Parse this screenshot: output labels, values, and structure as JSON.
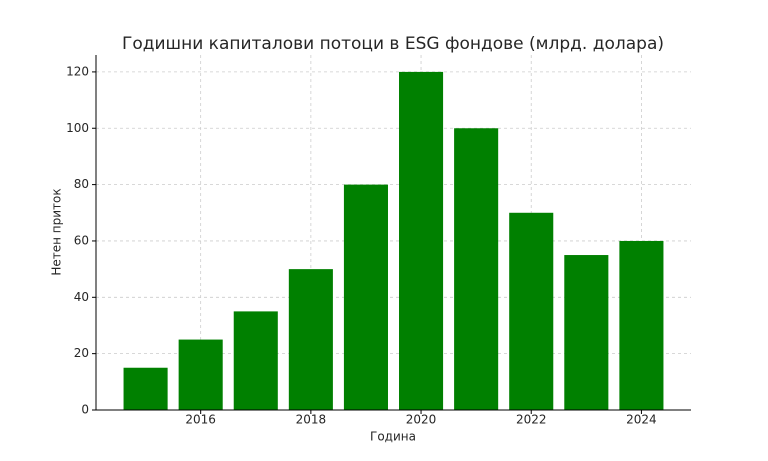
{
  "chart_data": {
    "type": "bar",
    "title": "Годишни капиталови потоци в ESG фондове (млрд. долара)",
    "x_label": "Година",
    "y_label": "Нетен приток",
    "x": [
      2015,
      2016,
      2017,
      2018,
      2019,
      2020,
      2021,
      2022,
      2023,
      2024
    ],
    "values": [
      15,
      25,
      35,
      50,
      80,
      120,
      100,
      70,
      55,
      60
    ],
    "color": "#008000",
    "xlim": [
      2014.1,
      2024.9
    ],
    "xticks": [
      2016,
      2018,
      2020,
      2022,
      2024
    ],
    "ylim": [
      0,
      126
    ],
    "yticks": [
      0,
      20,
      40,
      60,
      80,
      100,
      120
    ],
    "grid": true
  }
}
